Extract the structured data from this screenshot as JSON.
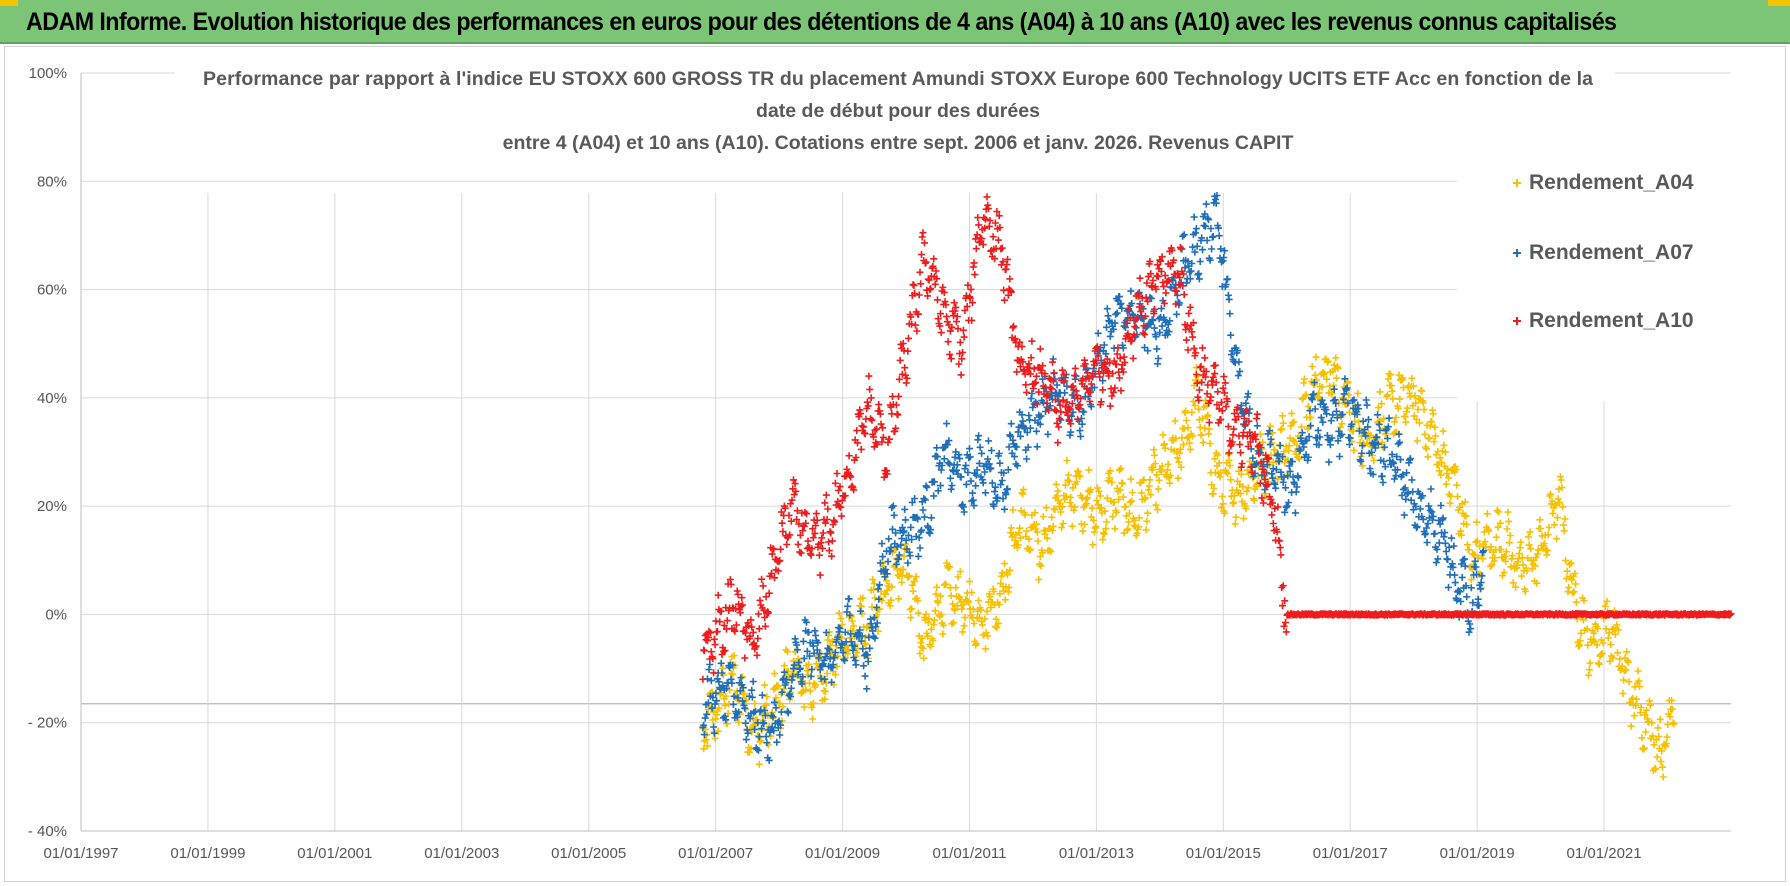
{
  "header": {
    "title": "ADAM Informe. Evolution historique des performances en euros pour des détentions de 4 ans (A04) à 10 ans (A10) avec les revenus connus capitalisés"
  },
  "chart_data": {
    "type": "scatter",
    "title_lines": [
      "Performance par rapport à l'indice EU STOXX 600 GROSS TR  du placement Amundi STOXX Europe 600 Technology UCITS ETF Acc en fonction de la",
      "date de début pour des durées",
      "entre 4 (A04) et 10 ans (A10). Cotations entre sept. 2006 et janv. 2026. Revenus CAPIT"
    ],
    "xlabel": "",
    "ylabel": "",
    "x_range": [
      "1997-01-01",
      "2022-12-31"
    ],
    "x_tick_labels": [
      "01/01/1997",
      "01/01/1999",
      "01/01/2001",
      "01/01/2003",
      "01/01/2005",
      "01/01/2007",
      "01/01/2009",
      "01/01/2011",
      "01/01/2013",
      "01/01/2015",
      "01/01/2017",
      "01/01/2019",
      "01/01/2021"
    ],
    "y_range": [
      -40,
      100
    ],
    "y_tick_values": [
      100,
      80,
      60,
      40,
      20,
      0,
      -20,
      -40
    ],
    "y_tick_labels": [
      "100%",
      "80%",
      "60%",
      "40%",
      "20%",
      "0%",
      "- 20%",
      "- 40%"
    ],
    "grid": true,
    "legend_position": "top-right",
    "series": [
      {
        "name": "Rendement_A04",
        "color": "#f7c000",
        "marker": "+",
        "points": [
          [
            2006.8,
            -22
          ],
          [
            2007.0,
            -18
          ],
          [
            2007.3,
            -12
          ],
          [
            2007.6,
            -22
          ],
          [
            2007.9,
            -18
          ],
          [
            2008.2,
            -10
          ],
          [
            2008.5,
            -14
          ],
          [
            2008.8,
            -8
          ],
          [
            2009.1,
            -4
          ],
          [
            2009.4,
            -2
          ],
          [
            2009.7,
            5
          ],
          [
            2010.0,
            10
          ],
          [
            2010.3,
            -6
          ],
          [
            2010.6,
            4
          ],
          [
            2010.9,
            2
          ],
          [
            2011.2,
            -1
          ],
          [
            2011.5,
            4
          ],
          [
            2011.8,
            18
          ],
          [
            2012.1,
            12
          ],
          [
            2012.4,
            20
          ],
          [
            2012.7,
            24
          ],
          [
            2013.0,
            18
          ],
          [
            2013.3,
            22
          ],
          [
            2013.6,
            18
          ],
          [
            2014.0,
            26
          ],
          [
            2014.3,
            30
          ],
          [
            2014.6,
            40
          ],
          [
            2014.9,
            25
          ],
          [
            2015.2,
            22
          ],
          [
            2015.5,
            26
          ],
          [
            2015.8,
            30
          ],
          [
            2016.1,
            32
          ],
          [
            2016.4,
            42
          ],
          [
            2016.7,
            45
          ],
          [
            2017.0,
            36
          ],
          [
            2017.3,
            32
          ],
          [
            2017.6,
            38
          ],
          [
            2017.9,
            40
          ],
          [
            2018.1,
            38
          ],
          [
            2018.4,
            30
          ],
          [
            2018.7,
            22
          ],
          [
            2018.9,
            10
          ],
          [
            2019.1,
            12
          ],
          [
            2019.4,
            14
          ],
          [
            2019.7,
            8
          ],
          [
            2020.0,
            12
          ],
          [
            2020.3,
            22
          ],
          [
            2020.5,
            4
          ],
          [
            2020.8,
            -6
          ],
          [
            2021.1,
            -2
          ],
          [
            2021.4,
            -14
          ],
          [
            2021.7,
            -20
          ],
          [
            2021.9,
            -26
          ],
          [
            2022.1,
            -16
          ]
        ]
      },
      {
        "name": "Rendement_A07",
        "color": "#1f6eb8",
        "marker": "+",
        "points": [
          [
            2006.8,
            -17
          ],
          [
            2007.0,
            -15
          ],
          [
            2007.3,
            -14
          ],
          [
            2007.6,
            -19
          ],
          [
            2007.9,
            -22
          ],
          [
            2008.2,
            -12
          ],
          [
            2008.5,
            -5
          ],
          [
            2008.8,
            -10
          ],
          [
            2009.1,
            -2
          ],
          [
            2009.4,
            -8
          ],
          [
            2009.7,
            13
          ],
          [
            2010.0,
            15
          ],
          [
            2010.3,
            18
          ],
          [
            2010.6,
            30
          ],
          [
            2010.9,
            24
          ],
          [
            2011.2,
            28
          ],
          [
            2011.5,
            24
          ],
          [
            2011.8,
            33
          ],
          [
            2012.1,
            38
          ],
          [
            2012.4,
            42
          ],
          [
            2012.7,
            38
          ],
          [
            2013.0,
            45
          ],
          [
            2013.3,
            55
          ],
          [
            2013.6,
            55
          ],
          [
            2014.0,
            52
          ],
          [
            2014.3,
            62
          ],
          [
            2014.6,
            68
          ],
          [
            2014.9,
            74
          ],
          [
            2015.2,
            45
          ],
          [
            2015.5,
            30
          ],
          [
            2015.8,
            28
          ],
          [
            2016.1,
            22
          ],
          [
            2016.4,
            38
          ],
          [
            2016.7,
            34
          ],
          [
            2017.0,
            38
          ],
          [
            2017.3,
            32
          ],
          [
            2017.6,
            30
          ],
          [
            2017.9,
            24
          ],
          [
            2018.1,
            18
          ],
          [
            2018.4,
            16
          ],
          [
            2018.7,
            6
          ],
          [
            2018.9,
            2
          ],
          [
            2019.1,
            8
          ]
        ]
      },
      {
        "name": "Rendement_A10",
        "color": "#ee1c1c",
        "marker": "+",
        "points": [
          [
            2006.8,
            -8
          ],
          [
            2007.0,
            -4
          ],
          [
            2007.3,
            2
          ],
          [
            2007.6,
            -6
          ],
          [
            2007.9,
            8
          ],
          [
            2008.2,
            20
          ],
          [
            2008.5,
            12
          ],
          [
            2008.8,
            16
          ],
          [
            2009.1,
            26
          ],
          [
            2009.4,
            38
          ],
          [
            2009.7,
            30
          ],
          [
            2010.0,
            48
          ],
          [
            2010.3,
            66
          ],
          [
            2010.6,
            55
          ],
          [
            2010.9,
            50
          ],
          [
            2011.2,
            74
          ],
          [
            2011.5,
            68
          ],
          [
            2011.8,
            45
          ],
          [
            2012.1,
            44
          ],
          [
            2012.4,
            38
          ],
          [
            2012.7,
            40
          ],
          [
            2013.0,
            46
          ],
          [
            2013.3,
            44
          ],
          [
            2013.6,
            55
          ],
          [
            2014.0,
            62
          ],
          [
            2014.3,
            64
          ],
          [
            2014.6,
            45
          ],
          [
            2014.9,
            40
          ],
          [
            2015.2,
            34
          ],
          [
            2015.5,
            32
          ],
          [
            2015.8,
            20
          ],
          [
            2016.0,
            0
          ],
          [
            2016.5,
            0
          ],
          [
            2017.0,
            0
          ],
          [
            2017.5,
            0
          ],
          [
            2018.0,
            0
          ],
          [
            2018.5,
            0
          ],
          [
            2019.0,
            0
          ],
          [
            2019.5,
            0
          ],
          [
            2020.0,
            0
          ],
          [
            2020.5,
            0
          ],
          [
            2021.0,
            0
          ],
          [
            2021.5,
            0
          ],
          [
            2022.0,
            0
          ],
          [
            2022.5,
            0
          ],
          [
            2023.0,
            0
          ]
        ]
      }
    ],
    "extra_reference_line": {
      "y": -16.5
    }
  }
}
